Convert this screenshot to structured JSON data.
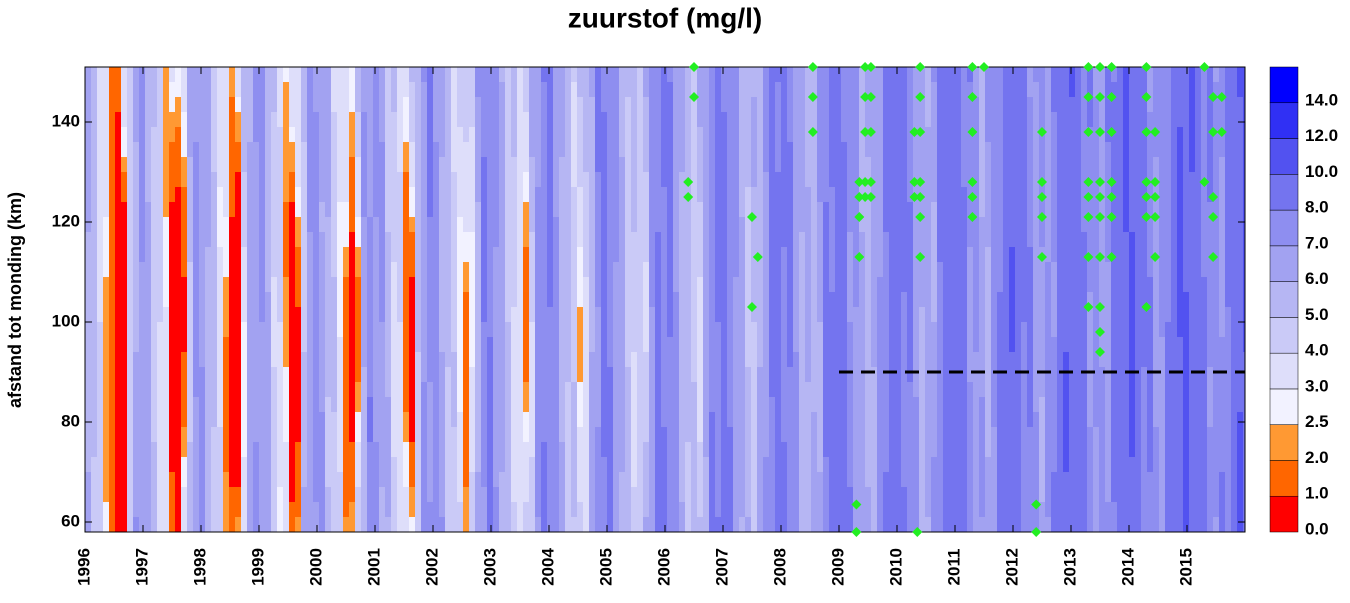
{
  "chart_data": {
    "type": "contour",
    "title": "zuurstof (mg/l)",
    "y_label": "afstand tot monding (km)",
    "xlim": [
      1996,
      2016
    ],
    "xticks": [
      1996,
      1997,
      1998,
      1999,
      2000,
      2001,
      2002,
      2003,
      2004,
      2005,
      2006,
      2007,
      2008,
      2009,
      2010,
      2011,
      2012,
      2013,
      2014,
      2015
    ],
    "ylim": [
      58,
      151
    ],
    "yticks": [
      60,
      80,
      100,
      120,
      140
    ],
    "colorbar": {
      "levels": [
        {
          "value": 0,
          "label": "0.0"
        },
        {
          "value": 1,
          "label": "1.0"
        },
        {
          "value": 2,
          "label": "2.0"
        },
        {
          "value": 2.5,
          "label": "2.5"
        },
        {
          "value": 3,
          "label": "3.0"
        },
        {
          "value": 4,
          "label": "4.0"
        },
        {
          "value": 5,
          "label": "5.0"
        },
        {
          "value": 6,
          "label": "6.0"
        },
        {
          "value": 7,
          "label": "7.0"
        },
        {
          "value": 8,
          "label": "8.0"
        },
        {
          "value": 10,
          "label": "10.0"
        },
        {
          "value": 12,
          "label": "12.0"
        },
        {
          "value": 14,
          "label": "14.0"
        }
      ],
      "colors": [
        "#ff0000",
        "#ff6600",
        "#ff9933",
        "#f2f2ff",
        "#dedefa",
        "#cacaf7",
        "#b6b6f3",
        "#a2a2f1",
        "#8e8ef0",
        "#7474ef",
        "#5252f0",
        "#3030f4",
        "#0000ff"
      ]
    },
    "reference_line": {
      "y": 90,
      "x": [
        2009,
        2016
      ],
      "color": "#000000"
    },
    "series": [
      {
        "marker": "diamond",
        "color": "#22ee22",
        "x": [
          2006.5,
          2006.5,
          2006.4,
          2006.4,
          2007.5,
          2007.5,
          2007.6,
          2008.55,
          2008.55,
          2008.55,
          2009.3,
          2009.3,
          2009.35,
          2009.35,
          2009.35,
          2009.35,
          2009.45,
          2009.45,
          2009.45,
          2009.45,
          2009.45,
          2009.55,
          2009.55,
          2009.55,
          2009.55,
          2009.55,
          2010.3,
          2010.3,
          2010.3,
          2010.4,
          2010.4,
          2010.4,
          2010.4,
          2010.4,
          2010.4,
          2010.4,
          2010.35,
          2011.3,
          2011.3,
          2011.3,
          2011.3,
          2011.3,
          2011.3,
          2011.5,
          2012.4,
          2012.4,
          2012.5,
          2012.5,
          2012.5,
          2012.5,
          2012.5,
          2013.3,
          2013.3,
          2013.3,
          2013.3,
          2013.3,
          2013.3,
          2013.3,
          2013.3,
          2013.5,
          2013.5,
          2013.5,
          2013.5,
          2013.5,
          2013.5,
          2013.5,
          2013.5,
          2013.5,
          2013.5,
          2013.7,
          2013.7,
          2013.7,
          2013.7,
          2013.7,
          2013.7,
          2013.7,
          2014.3,
          2014.3,
          2014.3,
          2014.3,
          2014.3,
          2014.3,
          2014.3,
          2014.45,
          2014.45,
          2014.45,
          2014.45,
          2014.45,
          2015.3,
          2015.3,
          2015.45,
          2015.45,
          2015.45,
          2015.45,
          2015.45,
          2015.6,
          2015.6
        ],
        "values": [
          151,
          145,
          128,
          125,
          121,
          103,
          113,
          151,
          145,
          138,
          63.5,
          58,
          128,
          125,
          121,
          113,
          151,
          145,
          138,
          128,
          125,
          151,
          145,
          138,
          128,
          125,
          138,
          128,
          125,
          151,
          145,
          138,
          128,
          125,
          121,
          113,
          58,
          151,
          145,
          138,
          128,
          125,
          121,
          151,
          63.5,
          58,
          138,
          128,
          125,
          121,
          113,
          151,
          145,
          138,
          128,
          125,
          121,
          113,
          103,
          151,
          145,
          138,
          128,
          125,
          121,
          113,
          103,
          98,
          94,
          151,
          145,
          138,
          128,
          125,
          121,
          113,
          151,
          145,
          138,
          128,
          125,
          121,
          103,
          138,
          128,
          125,
          121,
          113,
          151,
          128,
          145,
          138,
          125,
          121,
          113,
          145,
          138
        ]
      }
    ]
  }
}
